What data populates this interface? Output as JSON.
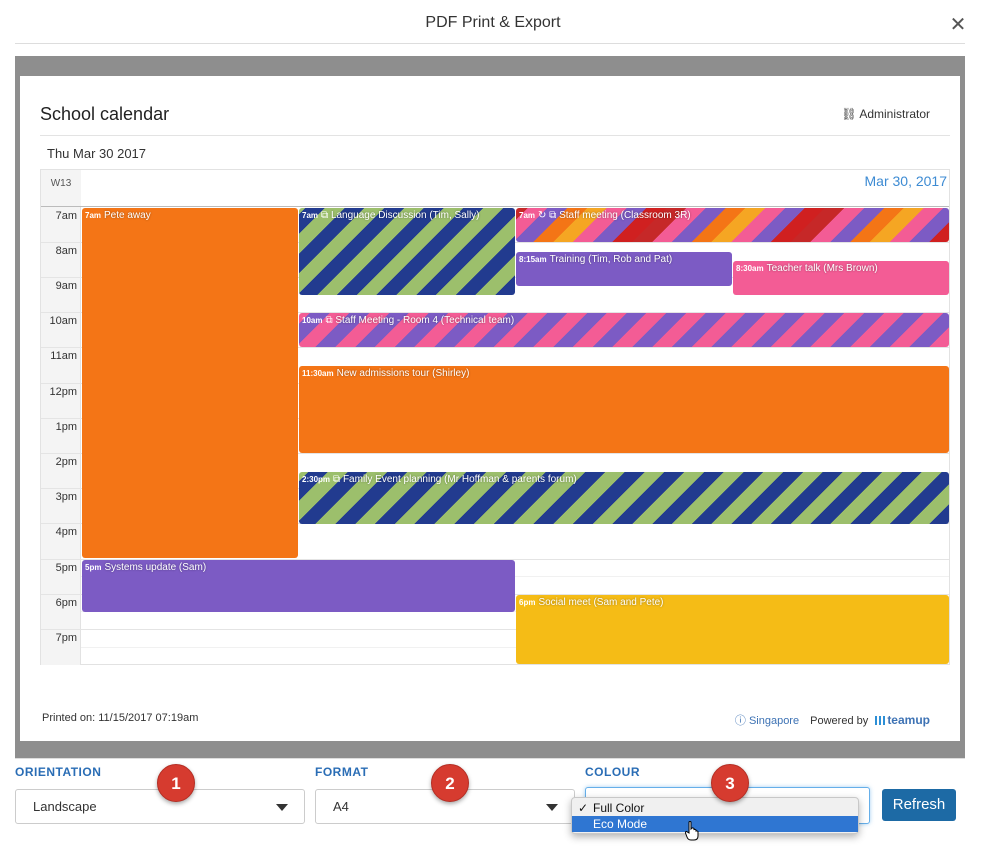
{
  "dialog": {
    "title": "PDF Print & Export",
    "close_icon": "close-icon"
  },
  "calendar": {
    "title": "School calendar",
    "user": "Administrator",
    "date_label": "Thu Mar 30 2017",
    "week": "W13",
    "column_date": "Mar 30, 2017",
    "hours": [
      "7am",
      "8am",
      "9am",
      "10am",
      "11am",
      "12pm",
      "1pm",
      "2pm",
      "3pm",
      "4pm",
      "5pm",
      "6pm",
      "7pm"
    ]
  },
  "events": [
    {
      "time": "7am",
      "title": "Pete away",
      "color": "#f47516"
    },
    {
      "time": "7am",
      "title": "Language Discussion (Tim, Sally)",
      "colors": [
        "#223b8f",
        "#9cbf6c"
      ]
    },
    {
      "time": "7am",
      "title": "Staff meeting (Classroom 3R)",
      "colors": [
        "#d02020",
        "#7c5bc4",
        "#f35c95",
        "#f5a623",
        "#f47516"
      ]
    },
    {
      "time": "8:15am",
      "title": "Training (Tim, Rob and Pat)",
      "color": "#7c5bc4"
    },
    {
      "time": "8:30am",
      "title": "Teacher talk (Mrs Brown)",
      "color": "#f35c95"
    },
    {
      "time": "10am",
      "title": "Staff Meeting - Room 4 (Technical team)",
      "colors": [
        "#f35c95",
        "#7c5bc4"
      ]
    },
    {
      "time": "11:30am",
      "title": "New admissions tour (Shirley)",
      "color": "#f47516"
    },
    {
      "time": "2:30pm",
      "title": "Family Event planning (Mr Hoffman & parents forum)",
      "colors": [
        "#223b8f",
        "#9cbf6c"
      ]
    },
    {
      "time": "5pm",
      "title": "Systems update (Sam)",
      "color": "#7c5bc4"
    },
    {
      "time": "6pm",
      "title": "Social meet (Sam and Pete)",
      "color": "#f5bc16"
    }
  ],
  "footer": {
    "printed_on": "Printed on: 11/15/2017 07:19am",
    "location": "Singapore",
    "powered_by": "Powered by",
    "brand": "teamup"
  },
  "options": {
    "orientation": {
      "label": "ORIENTATION",
      "value": "Landscape"
    },
    "format": {
      "label": "FORMAT",
      "value": "A4"
    },
    "colour": {
      "label": "COLOUR",
      "options": [
        "Full Color",
        "Eco Mode"
      ],
      "selected": "Full Color",
      "highlighted": "Eco Mode"
    },
    "refresh": "Refresh"
  },
  "badges": [
    "1",
    "2",
    "3"
  ],
  "colors": {
    "accent": "#2a6db5",
    "button": "#1d6aa5",
    "badge": "#d63b2f"
  }
}
